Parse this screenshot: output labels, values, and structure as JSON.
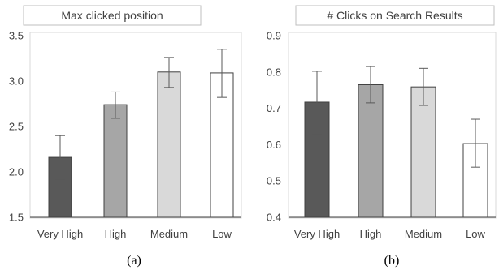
{
  "chart_data": [
    {
      "type": "bar",
      "title": "Max clicked position",
      "caption": "(a)",
      "categories": [
        "Very High",
        "High",
        "Medium",
        "Low"
      ],
      "values": [
        2.16,
        2.74,
        3.1,
        3.09
      ],
      "error_low": [
        1.92,
        2.59,
        2.93,
        2.82
      ],
      "error_high": [
        2.4,
        2.88,
        3.26,
        3.35
      ],
      "ylim": [
        1.5,
        3.5
      ],
      "yticks": [
        "1.5",
        "2.0",
        "2.5",
        "3.0",
        "3.5"
      ],
      "ytick_values": [
        1.5,
        2.0,
        2.5,
        3.0,
        3.5
      ],
      "bar_colors": [
        "#595959",
        "#a6a6a6",
        "#d9d9d9",
        "#ffffff"
      ],
      "grid": false,
      "legend": "none"
    },
    {
      "type": "bar",
      "title": "# Clicks on Search Results",
      "caption": "(b)",
      "categories": [
        "Very High",
        "High",
        "Medium",
        "Low"
      ],
      "values": [
        0.717,
        0.765,
        0.759,
        0.603
      ],
      "error_low": [
        0.63,
        0.715,
        0.708,
        0.538
      ],
      "error_high": [
        0.802,
        0.815,
        0.81,
        0.67
      ],
      "ylim": [
        0.4,
        0.9
      ],
      "yticks": [
        "0.4",
        "0.5",
        "0.6",
        "0.7",
        "0.8",
        "0.9"
      ],
      "ytick_values": [
        0.4,
        0.5,
        0.6,
        0.7,
        0.8,
        0.9
      ],
      "bar_colors": [
        "#595959",
        "#a6a6a6",
        "#d9d9d9",
        "#ffffff"
      ],
      "grid": false,
      "legend": "none"
    }
  ]
}
